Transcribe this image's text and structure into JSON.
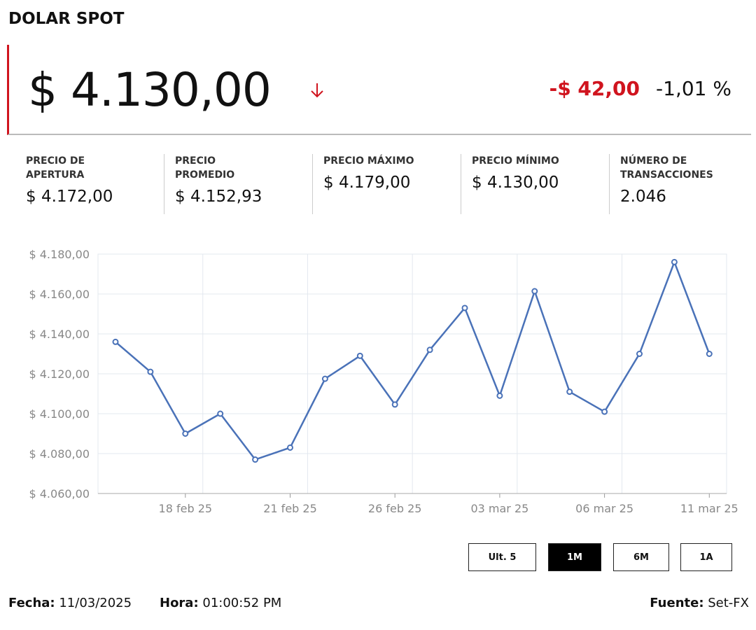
{
  "header": {
    "title": "DOLAR SPOT",
    "price": "$ 4.130,00",
    "change": "-$ 42,00",
    "change_pct": "-1,01 %"
  },
  "stats": [
    {
      "label": "PRECIO DE APERTURA",
      "value": "$ 4.172,00"
    },
    {
      "label": "PRECIO PROMEDIO",
      "value": "$ 4.152,93"
    },
    {
      "label": "PRECIO MÁXIMO",
      "value": "$ 4.179,00"
    },
    {
      "label": "PRECIO MÍNIMO",
      "value": "$ 4.130,00"
    },
    {
      "label": "NÚMERO DE TRANSACCIONES",
      "value": "2.046"
    }
  ],
  "chart_data": {
    "type": "line",
    "categories": [
      null,
      null,
      "18 feb 25",
      null,
      null,
      "21 feb 25",
      null,
      null,
      "26 feb 25",
      null,
      null,
      "03 mar 25",
      null,
      null,
      "06 mar 25",
      null,
      null,
      "11 mar 25"
    ],
    "series": [
      {
        "name": "Dolar Spot",
        "color": "#4a72b8",
        "values": [
          4136,
          4121,
          4090,
          4100,
          4077,
          4083,
          4117.5,
          4129,
          4104.6,
          4132,
          4153,
          4109,
          4161.4,
          4111,
          4101,
          4130,
          4176,
          4130
        ]
      }
    ],
    "ylim": [
      4060,
      4180
    ],
    "yticks": [
      {
        "value": 4060,
        "label": "$ 4.060,00"
      },
      {
        "value": 4080,
        "label": "$ 4.080,00"
      },
      {
        "value": 4100,
        "label": "$ 4.100,00"
      },
      {
        "value": 4120,
        "label": "$ 4.120,00"
      },
      {
        "value": 4140,
        "label": "$ 4.140,00"
      },
      {
        "value": 4160,
        "label": "$ 4.160,00"
      },
      {
        "value": 4180,
        "label": "$ 4.180,00"
      }
    ],
    "grid": true
  },
  "ranges": [
    "Ult. 5",
    "1M",
    "6M",
    "1A"
  ],
  "active_range": 1,
  "footer": {
    "date_label": "Fecha:",
    "date": "11/03/2025",
    "time_label": "Hora:",
    "time": "01:00:52 PM",
    "source_label": "Fuente:",
    "source": "Set-FX"
  }
}
